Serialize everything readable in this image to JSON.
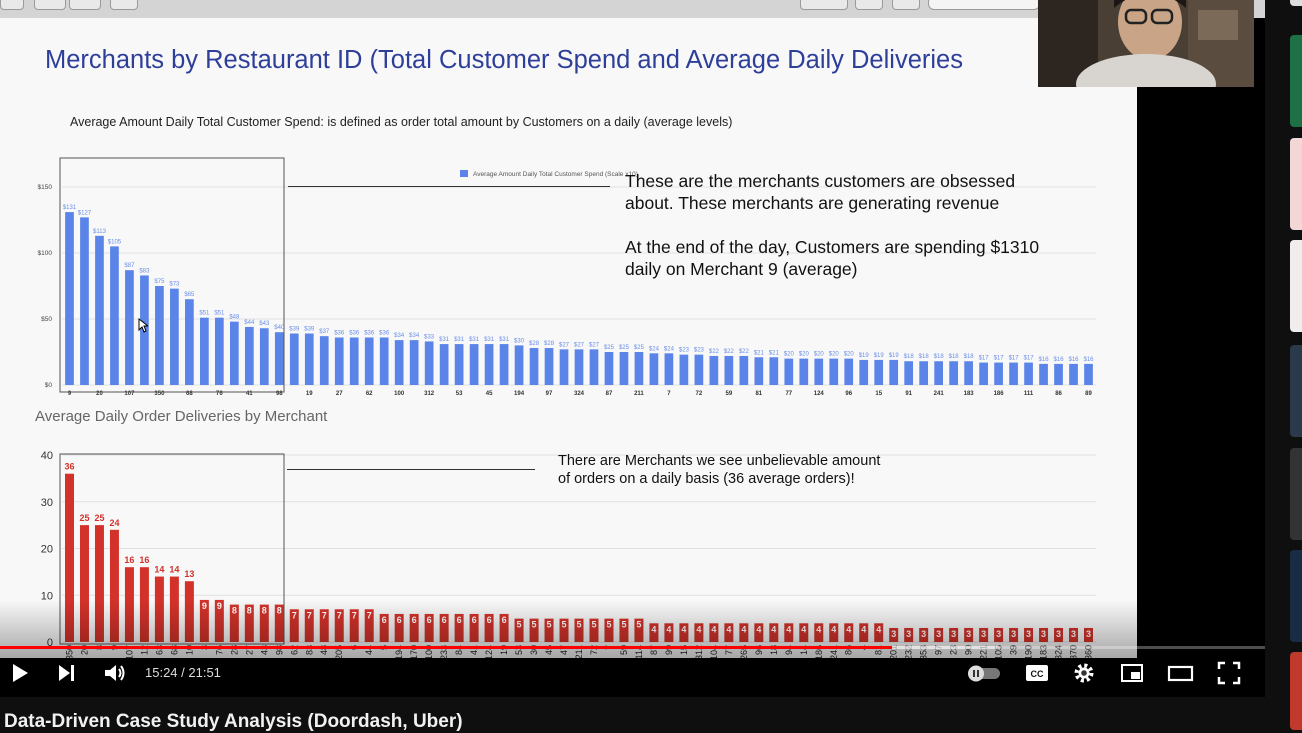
{
  "slide": {
    "title": "Merchants by Restaurant ID  (Total Customer Spend and Average Daily Deliveries",
    "spend_note": "Average Amount Daily Total Customer Spend: is defined as order total amount by Customers on a daily (average levels)",
    "annotation_1a": "These are the merchants customers are obsessed",
    "annotation_1b": "about. These merchants are generating revenue",
    "annotation_2a": "At the end of the day, Customers are spending $1310",
    "annotation_2b": "daily on Merchant 9 (average)",
    "deliveries_title": "Average Daily Order Deliveries by Merchant",
    "annotation_3a": "There are Merchants we see unbelievable amount",
    "annotation_3b": "of orders on a daily basis (36 average orders)!"
  },
  "player": {
    "time_display": "15:24 / 21:51",
    "progress_fraction": 0.705,
    "buffer_fraction": 0.79,
    "video_title": "Data-Driven Case Study Analysis (Doordash, Uber)",
    "icons": [
      "play-icon",
      "next-icon",
      "volume-icon",
      "autoplay-toggle-icon",
      "captions-icon",
      "settings-icon",
      "miniplayer-icon",
      "theater-icon",
      "fullscreen-icon"
    ],
    "colors": {
      "progress": "#ff0000",
      "spend_bar": "#5b84e8",
      "delivery_bar": "#d2322a",
      "title": "#2e3f9a"
    }
  },
  "chart_data": [
    {
      "type": "bar",
      "title": "",
      "legend": "Average Amount Daily Total Customer Spend (Scale x10)",
      "ylim": [
        0,
        150
      ],
      "y_ticks": [
        "$0",
        "$50",
        "$100",
        "$150"
      ],
      "tick_labels": [
        "9",
        "20",
        "107",
        "350",
        "68",
        "76",
        "41",
        "98",
        "19",
        "27",
        "62",
        "100",
        "312",
        "53",
        "45",
        "194",
        "97",
        "324",
        "87",
        "211",
        "7",
        "72",
        "59",
        "81",
        "77",
        "124",
        "96",
        "15",
        "91",
        "241",
        "183",
        "186",
        "111",
        "86",
        "89"
      ],
      "values": [
        131,
        127,
        113,
        105,
        87,
        83,
        75,
        73,
        65,
        51,
        51,
        48,
        44,
        43,
        40,
        39,
        39,
        37,
        36,
        36,
        36,
        36,
        34,
        34,
        33,
        31,
        31,
        31,
        31,
        31,
        30,
        28,
        28,
        27,
        27,
        27,
        25,
        25,
        25,
        24,
        24,
        23,
        23,
        22,
        22,
        22,
        21,
        21,
        20,
        20,
        20,
        20,
        20,
        19,
        19,
        19,
        18,
        18,
        18,
        18,
        18,
        17,
        17,
        17,
        17,
        16,
        16,
        16,
        16
      ],
      "value_labels": [
        "$131",
        "$127",
        "$113",
        "$105",
        "$87",
        "$83",
        "$75",
        "$73",
        "$65",
        "$51",
        "$51",
        "$48",
        "$44",
        "$43",
        "$40",
        "$39",
        "$39",
        "$37",
        "$36",
        "$36",
        "$36",
        "$36",
        "$34",
        "$34",
        "$33",
        "$31",
        "$31",
        "$31",
        "$31",
        "$31",
        "$30",
        "$28",
        "$28",
        "$27",
        "$27",
        "$27",
        "$25",
        "$25",
        "$25",
        "$24",
        "$24",
        "$23",
        "$23",
        "$22",
        "$22",
        "$22",
        "$21",
        "$21",
        "$20",
        "$20",
        "$20",
        "$20",
        "$20",
        "$19",
        "$19",
        "$19",
        "$18",
        "$18",
        "$18",
        "$18",
        "$18",
        "$17",
        "$17",
        "$17",
        "$17",
        "$16",
        "$16",
        "$16",
        "$16"
      ]
    },
    {
      "type": "bar",
      "title": "Average Daily Order Deliveries by Merchant",
      "ylim": [
        0,
        40
      ],
      "y_ticks": [
        "0",
        "10",
        "20",
        "30",
        "40"
      ],
      "categories": [
        "350",
        "20",
        "8",
        "9",
        "107",
        "12",
        "63",
        "68",
        "10",
        "3",
        "76",
        "28",
        "27",
        "43",
        "98",
        "62",
        "83",
        "48",
        "205",
        "6",
        "44",
        "5",
        "194",
        "170",
        "100",
        "233",
        "84",
        "41",
        "124",
        "19",
        "53",
        "30",
        "45",
        "47",
        "211",
        "72",
        "7",
        "59",
        "114",
        "87",
        "99",
        "15",
        "312",
        "104",
        "77",
        "265",
        "96",
        "18",
        "94",
        "14",
        "186",
        "241",
        "86",
        "4",
        "81",
        "201",
        "232",
        "353",
        "97",
        "23",
        "90",
        "221",
        "105",
        "39",
        "190",
        "183",
        "324",
        "370",
        "360"
      ],
      "values": [
        36,
        25,
        25,
        24,
        16,
        16,
        14,
        14,
        13,
        9,
        9,
        8,
        8,
        8,
        8,
        7,
        7,
        7,
        7,
        7,
        7,
        6,
        6,
        6,
        6,
        6,
        6,
        6,
        6,
        6,
        5,
        5,
        5,
        5,
        5,
        5,
        5,
        5,
        5,
        4,
        4,
        4,
        4,
        4,
        4,
        4,
        4,
        4,
        4,
        4,
        4,
        4,
        4,
        4,
        4,
        3,
        3,
        3,
        3,
        3,
        3,
        3,
        3,
        3,
        3,
        3,
        3,
        3,
        3
      ]
    }
  ]
}
